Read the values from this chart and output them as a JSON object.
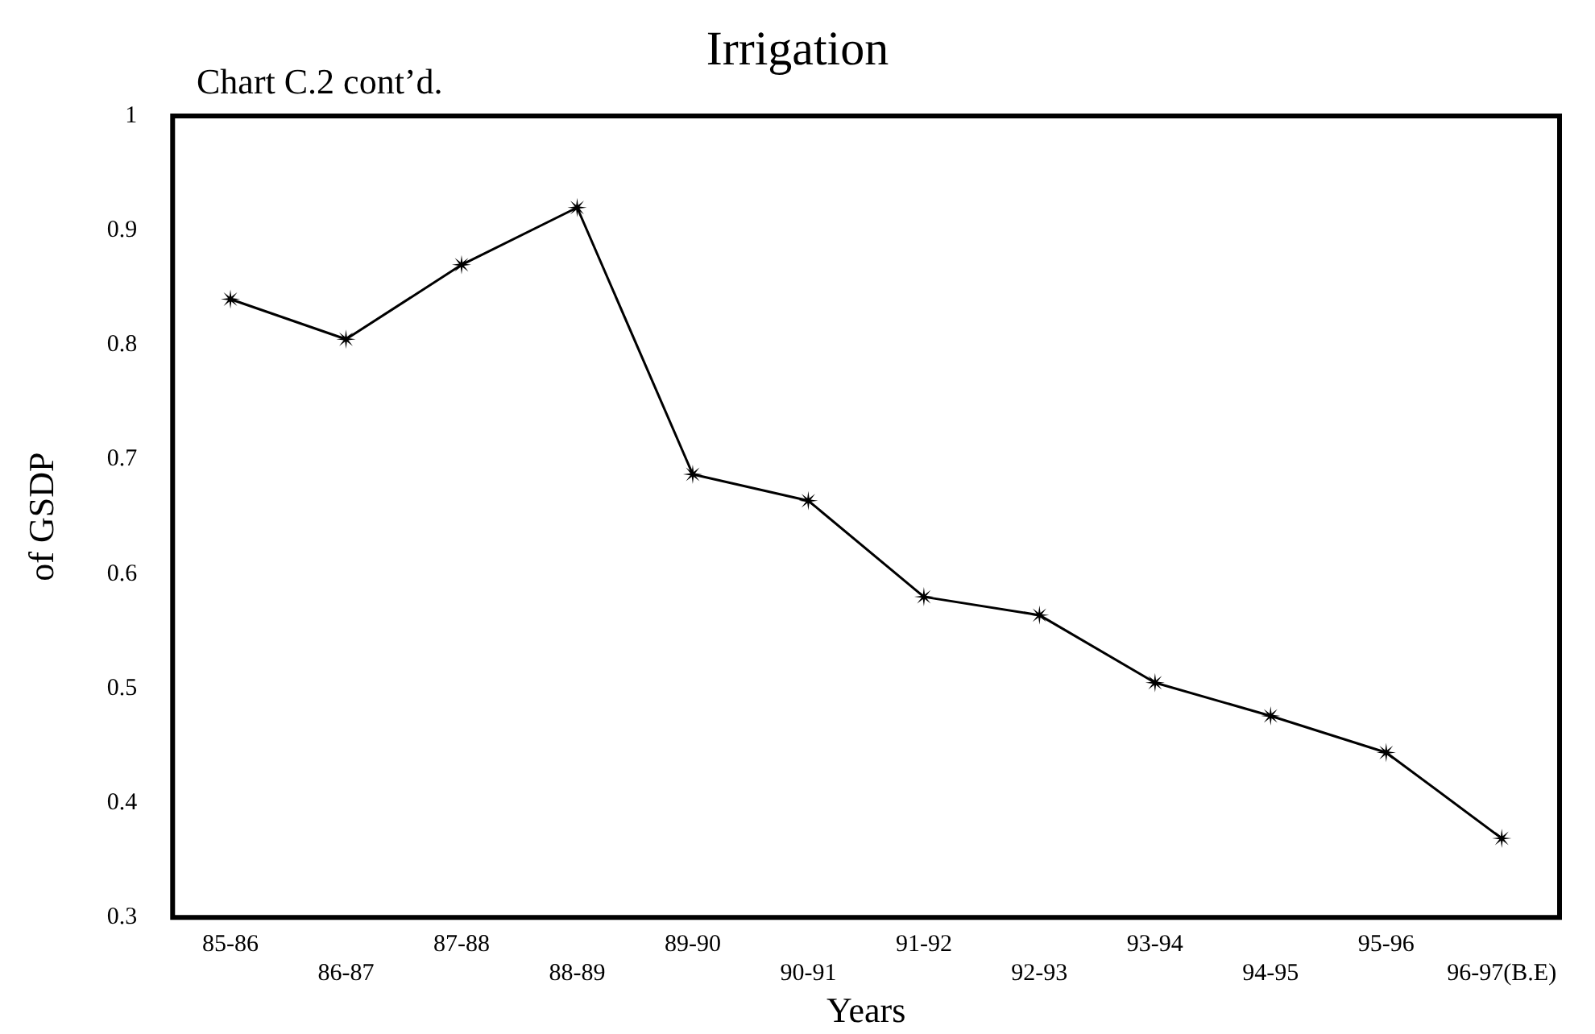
{
  "chart_data": {
    "type": "line",
    "title": "Irrigation",
    "annotations": [
      "Chart C.2 cont’d."
    ],
    "xlabel": "Years",
    "ylabel": "of GSDP",
    "categories": [
      "85-86",
      "86-87",
      "87-88",
      "88-89",
      "89-90",
      "90-91",
      "91-92",
      "92-93",
      "93-94",
      "94-95",
      "95-96",
      "96-97(B.E)"
    ],
    "series": [
      {
        "color": "#000000",
        "values": [
          0.84,
          0.805,
          0.87,
          0.92,
          0.687,
          0.664,
          0.58,
          0.564,
          0.505,
          0.476,
          0.444,
          0.369
        ]
      }
    ],
    "ylim": [
      0.3,
      1
    ],
    "yticks": [
      0.3,
      0.4,
      0.5,
      0.6,
      0.7,
      0.8,
      0.9,
      {
        "value": 1,
        "label": "1"
      }
    ],
    "grid": false,
    "legend": false,
    "marker": "star",
    "line_style": "solid"
  }
}
